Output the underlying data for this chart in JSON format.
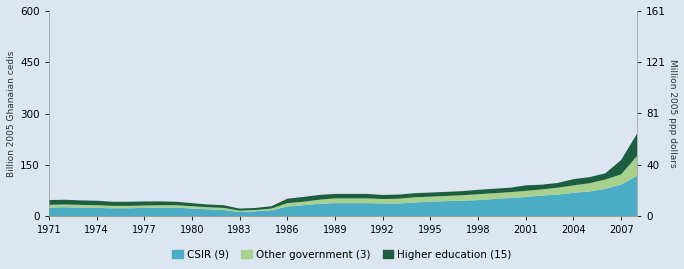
{
  "years": [
    1971,
    1972,
    1973,
    1974,
    1975,
    1976,
    1977,
    1978,
    1979,
    1980,
    1981,
    1982,
    1983,
    1984,
    1985,
    1986,
    1987,
    1988,
    1989,
    1990,
    1991,
    1992,
    1993,
    1994,
    1995,
    1996,
    1997,
    1998,
    1999,
    2000,
    2001,
    2002,
    2003,
    2004,
    2005,
    2006,
    2007,
    2008
  ],
  "csir": [
    25,
    26,
    25,
    24,
    23,
    23,
    24,
    25,
    25,
    22,
    20,
    18,
    12,
    14,
    17,
    28,
    32,
    36,
    38,
    38,
    38,
    37,
    37,
    40,
    42,
    44,
    45,
    47,
    50,
    53,
    56,
    60,
    63,
    68,
    72,
    80,
    92,
    118
  ],
  "other_gov": [
    8,
    8,
    8,
    8,
    7,
    7,
    7,
    7,
    7,
    7,
    6,
    6,
    4,
    4,
    5,
    10,
    10,
    12,
    14,
    14,
    14,
    13,
    14,
    15,
    15,
    15,
    16,
    17,
    17,
    17,
    18,
    18,
    20,
    22,
    24,
    27,
    30,
    58
  ],
  "higher_ed": [
    14,
    14,
    13,
    13,
    12,
    12,
    12,
    11,
    10,
    9,
    8,
    8,
    6,
    6,
    7,
    13,
    14,
    14,
    13,
    13,
    13,
    12,
    12,
    12,
    12,
    12,
    12,
    13,
    13,
    13,
    16,
    14,
    14,
    18,
    18,
    18,
    42,
    65
  ],
  "ylim_left": [
    0,
    600
  ],
  "ylim_right": [
    0,
    161
  ],
  "yticks_left": [
    0,
    150,
    300,
    450,
    600
  ],
  "yticks_right": [
    0,
    40,
    81,
    121,
    161
  ],
  "xticks": [
    1971,
    1974,
    1977,
    1980,
    1983,
    1986,
    1989,
    1992,
    1995,
    1998,
    2001,
    2004,
    2007
  ],
  "ylabel_left": "Billion 2005 Ghanaian cedis",
  "ylabel_right": "Million 2005 ppp dollars",
  "color_csir": "#4bacc6",
  "color_other": "#a9d18e",
  "color_higher": "#1d5e40",
  "label_csir": "CSIR (9)",
  "label_other": "Other government (3)",
  "label_higher": "Higher education (15)",
  "bg_color": "#dce6f1",
  "scale_factor": 3.727
}
